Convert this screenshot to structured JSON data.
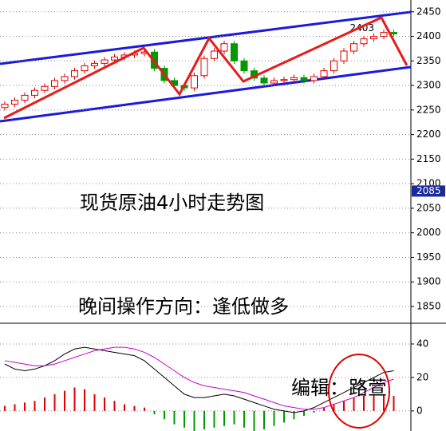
{
  "chart_data": {
    "type": "candlestick",
    "title": "现货原油4小时走势图",
    "subtitle": "晚间操作方向：逢低做多",
    "author": "编辑：路萱",
    "annotations": [
      {
        "text": "2403",
        "value": 2403,
        "index": 37
      },
      {
        "text": "2085",
        "value": 2085
      }
    ],
    "ylim": [
      1824,
      2474
    ],
    "yticks": [
      1850,
      1900,
      1950,
      2000,
      2050,
      2100,
      2150,
      2200,
      2250,
      2300,
      2350,
      2400,
      2450
    ],
    "grid": true,
    "up_color": "#e00000",
    "down_color": "#009900",
    "open": [
      2255,
      2262,
      2270,
      2280,
      2290,
      2298,
      2310,
      2318,
      2330,
      2340,
      2345,
      2352,
      2358,
      2362,
      2365,
      2368,
      2335,
      2310,
      2300,
      2295,
      2320,
      2355,
      2370,
      2385,
      2350,
      2330,
      2315,
      2305,
      2310,
      2312,
      2316,
      2310,
      2318,
      2330,
      2350,
      2370,
      2385,
      2395,
      2400,
      2408
    ],
    "high": [
      2268,
      2276,
      2286,
      2296,
      2304,
      2316,
      2324,
      2336,
      2346,
      2351,
      2358,
      2364,
      2368,
      2371,
      2374,
      2374,
      2341,
      2316,
      2306,
      2326,
      2361,
      2376,
      2391,
      2391,
      2356,
      2336,
      2321,
      2316,
      2318,
      2322,
      2322,
      2324,
      2336,
      2356,
      2376,
      2391,
      2401,
      2406,
      2414,
      2414
    ],
    "low": [
      2249,
      2256,
      2264,
      2274,
      2284,
      2292,
      2304,
      2312,
      2324,
      2334,
      2339,
      2346,
      2352,
      2356,
      2359,
      2329,
      2304,
      2294,
      2289,
      2289,
      2314,
      2349,
      2364,
      2344,
      2324,
      2309,
      2299,
      2299,
      2304,
      2306,
      2304,
      2304,
      2312,
      2324,
      2344,
      2364,
      2379,
      2389,
      2394,
      2399
    ],
    "close": [
      2262,
      2270,
      2280,
      2290,
      2298,
      2310,
      2318,
      2330,
      2340,
      2345,
      2352,
      2358,
      2362,
      2365,
      2368,
      2335,
      2310,
      2300,
      2295,
      2320,
      2355,
      2370,
      2385,
      2350,
      2330,
      2315,
      2305,
      2310,
      2312,
      2316,
      2310,
      2318,
      2330,
      2350,
      2370,
      2385,
      2395,
      2400,
      2408,
      2405
    ],
    "macd": {
      "ylim": [
        -12,
        50
      ],
      "yticks": [
        0,
        20,
        40
      ],
      "histogram": [
        3,
        4,
        5,
        6,
        8,
        10,
        12,
        14,
        13,
        10,
        8,
        6,
        4,
        3,
        2,
        -2,
        -5,
        -8,
        -10,
        -12,
        -11,
        -10,
        -9,
        -8,
        -10,
        -12,
        -11,
        -9,
        -7,
        -5,
        -3,
        -1,
        2,
        4,
        6,
        8,
        9,
        10,
        10,
        9
      ],
      "series": [
        {
          "color": "#000000",
          "values": [
            28,
            25,
            24,
            25,
            27,
            30,
            34,
            37,
            38,
            37,
            36,
            35,
            34,
            33,
            30,
            25,
            20,
            15,
            10,
            8,
            8,
            9,
            10,
            9,
            7,
            5,
            3,
            1,
            0,
            -1,
            0,
            2,
            5,
            8,
            11,
            14,
            17,
            20,
            23,
            24
          ]
        },
        {
          "color": "#cc00cc",
          "values": [
            30,
            29,
            28,
            27,
            27,
            28,
            30,
            32,
            34,
            36,
            37,
            38,
            38,
            37,
            35,
            32,
            28,
            24,
            20,
            17,
            15,
            14,
            13,
            12,
            11,
            9,
            7,
            5,
            3,
            2,
            1,
            1,
            2,
            4,
            6,
            8,
            11,
            14,
            17,
            19
          ]
        }
      ]
    }
  }
}
